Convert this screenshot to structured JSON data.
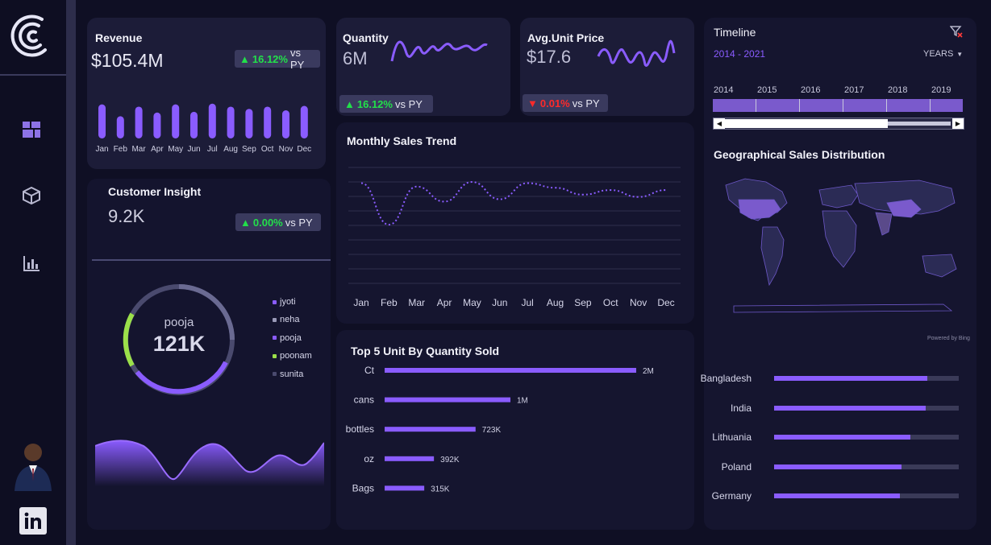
{
  "colors": {
    "accent": "#8a5cff",
    "up": "#22e04a",
    "down": "#ff2a2a",
    "bg": "#0f0f24",
    "card": "#1c1c38"
  },
  "sidebar": {
    "icons": [
      "logo-icon",
      "dashboard-icon",
      "cube-icon",
      "bar-chart-icon",
      "avatar",
      "linkedin-icon"
    ]
  },
  "revenue": {
    "title": "Revenue",
    "value": "$105.4M",
    "change": "16.12%",
    "vs": "vs PY",
    "direction": "up"
  },
  "quantity": {
    "title": "Quantity",
    "value": "6M",
    "change": "16.12%",
    "vs": "vs PY",
    "direction": "up"
  },
  "avg_price": {
    "title": "Avg.Unit Price",
    "value": "$17.6",
    "change": "0.01%",
    "vs": "vs PY",
    "direction": "down"
  },
  "customer": {
    "title": "Customer Insight",
    "value": "9.2K",
    "change": "0.00%",
    "vs": "vs PY",
    "direction": "up",
    "donut_label": "pooja",
    "donut_value": "121K",
    "legend": [
      {
        "name": "jyoti",
        "color": "#8a5cff"
      },
      {
        "name": "neha",
        "color": "#9a9ab8"
      },
      {
        "name": "pooja",
        "color": "#8a5cff"
      },
      {
        "name": "poonam",
        "color": "#9be04a"
      },
      {
        "name": "sunita",
        "color": "#4a4a6e"
      }
    ]
  },
  "monthly": {
    "title": "Monthly Sales Trend"
  },
  "top5": {
    "title": "Top 5 Unit By Quantity Sold"
  },
  "timeline": {
    "title": "Timeline",
    "range": "2014 - 2021",
    "unit": "YEARS",
    "years": [
      "2014",
      "2015",
      "2016",
      "2017",
      "2018",
      "2019"
    ]
  },
  "geo": {
    "title": "Geographical Sales Distribution",
    "powered": "Powered by Bing"
  },
  "chart_data": [
    {
      "type": "bar",
      "title": "Revenue",
      "categories": [
        "Jan",
        "Feb",
        "Mar",
        "Apr",
        "May",
        "Jun",
        "Jul",
        "Aug",
        "Sep",
        "Oct",
        "Nov",
        "Dec"
      ],
      "values": [
        9.2,
        6.0,
        8.6,
        7.0,
        9.2,
        7.2,
        9.4,
        8.6,
        8.0,
        8.6,
        7.6,
        8.8
      ],
      "ylim": [
        0,
        10
      ]
    },
    {
      "type": "line",
      "title": "Monthly Sales Trend",
      "categories": [
        "Jan",
        "Feb",
        "Mar",
        "Apr",
        "May",
        "Jun",
        "Jul",
        "Aug",
        "Sep",
        "Oct",
        "Nov",
        "Dec"
      ],
      "values": [
        9.2,
        5.6,
        8.9,
        7.6,
        9.3,
        7.8,
        9.2,
        8.8,
        8.2,
        8.6,
        8.0,
        8.6
      ],
      "ylim": [
        4,
        10
      ]
    },
    {
      "type": "bar",
      "title": "Top 5 Unit By Quantity Sold",
      "orientation": "horizontal",
      "categories": [
        "Ct",
        "cans",
        "bottles",
        "oz",
        "Bags"
      ],
      "values": [
        2000000,
        1000000,
        723000,
        392000,
        315000
      ],
      "labels": [
        "2M",
        "1M",
        "723K",
        "392K",
        "315K"
      ],
      "xlim": [
        0,
        2000000
      ]
    },
    {
      "type": "bar",
      "title": "Geographical Sales Distribution",
      "orientation": "horizontal",
      "categories": [
        "Bangladesh",
        "India",
        "Lithuania",
        "Poland",
        "Germany"
      ],
      "values": [
        0.83,
        0.82,
        0.74,
        0.69,
        0.68
      ],
      "xlim": [
        0,
        1
      ]
    }
  ]
}
